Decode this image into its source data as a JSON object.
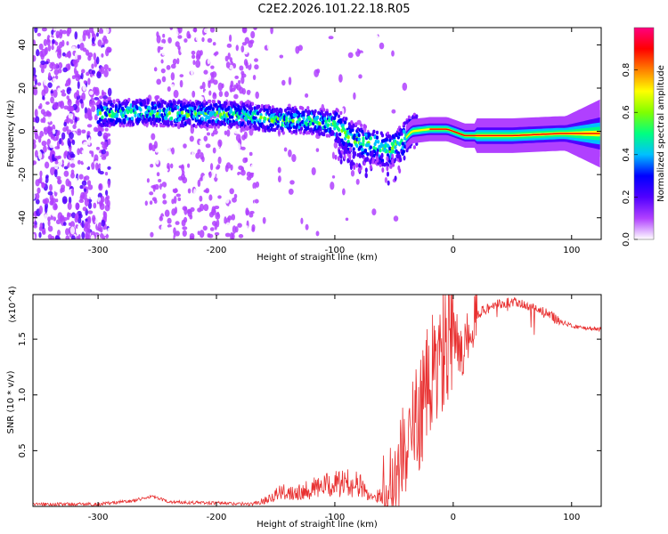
{
  "title": "C2E2.2026.101.22.18.R05",
  "colors": {
    "snr_line": "#e83030",
    "axis": "#000000"
  },
  "chart_data": [
    {
      "type": "heatmap",
      "title": "C2E2.2026.101.22.18.R05",
      "xlabel": "Height of straight line (km)",
      "ylabel": "Frequency (Hz)",
      "xlim": [
        -355,
        125
      ],
      "ylim": [
        -50,
        48
      ],
      "xticks": [
        -300,
        -200,
        -100,
        0,
        100
      ],
      "yticks": [
        -40,
        -20,
        0,
        20,
        40
      ],
      "colorbar": {
        "label": "Normalized spectral amplitude",
        "range": [
          0,
          1
        ],
        "ticks": [
          "0.0",
          "0.2",
          "0.4",
          "0.6",
          "0.8"
        ],
        "tick_values": [
          0,
          0.2,
          0.4,
          0.6,
          0.8
        ],
        "colormap": [
          "#ffffff",
          "#b040ff",
          "#5000ff",
          "#0000ff",
          "#00c0ff",
          "#00ff80",
          "#80ff00",
          "#ffff00",
          "#ff8000",
          "#ff0000",
          "#ff0080"
        ]
      },
      "ridge": {
        "description": "dominant frequency track",
        "points": [
          [
            -295,
            8
          ],
          [
            -260,
            9
          ],
          [
            -230,
            8
          ],
          [
            -200,
            8
          ],
          [
            -170,
            7
          ],
          [
            -150,
            5
          ],
          [
            -120,
            5
          ],
          [
            -100,
            3
          ],
          [
            -85,
            -4
          ],
          [
            -70,
            -6
          ],
          [
            -55,
            -9
          ],
          [
            -45,
            -6
          ],
          [
            -35,
            0
          ],
          [
            -20,
            1
          ],
          [
            -5,
            1
          ],
          [
            10,
            -2
          ],
          [
            50,
            -2
          ],
          [
            90,
            -1
          ],
          [
            125,
            -1
          ]
        ]
      }
    },
    {
      "type": "line",
      "xlabel": "Height of straight line (km)",
      "ylabel": "SNR (10 * v/v)",
      "y_multiplier": "(x10^4)",
      "xlim": [
        -355,
        125
      ],
      "ylim": [
        0,
        1.9
      ],
      "xticks": [
        -300,
        -200,
        -100,
        0,
        100
      ],
      "yticks": [
        0.5,
        1.0,
        1.5
      ],
      "ytick_labels": [
        "0.5",
        "1.0",
        "1.5"
      ],
      "series": [
        {
          "name": "SNR",
          "x": [
            -355,
            -300,
            -270,
            -255,
            -240,
            -200,
            -170,
            -160,
            -150,
            -140,
            -130,
            -120,
            -110,
            -100,
            -90,
            -80,
            -70,
            -60,
            -50,
            -45,
            -40,
            -35,
            -30,
            -25,
            -20,
            -15,
            -10,
            -5,
            0,
            5,
            10,
            15,
            20,
            25,
            30,
            40,
            50,
            60,
            70,
            80,
            90,
            100,
            110,
            125
          ],
          "y": [
            0.02,
            0.02,
            0.05,
            0.09,
            0.04,
            0.03,
            0.02,
            0.05,
            0.11,
            0.13,
            0.14,
            0.16,
            0.18,
            0.2,
            0.21,
            0.2,
            0.09,
            0.1,
            0.28,
            0.4,
            0.55,
            0.65,
            0.8,
            0.95,
            1.1,
            1.25,
            1.35,
            1.45,
            1.55,
            1.45,
            1.4,
            1.65,
            1.72,
            1.76,
            1.78,
            1.82,
            1.83,
            1.8,
            1.77,
            1.72,
            1.66,
            1.62,
            1.6,
            1.59
          ]
        }
      ]
    }
  ]
}
